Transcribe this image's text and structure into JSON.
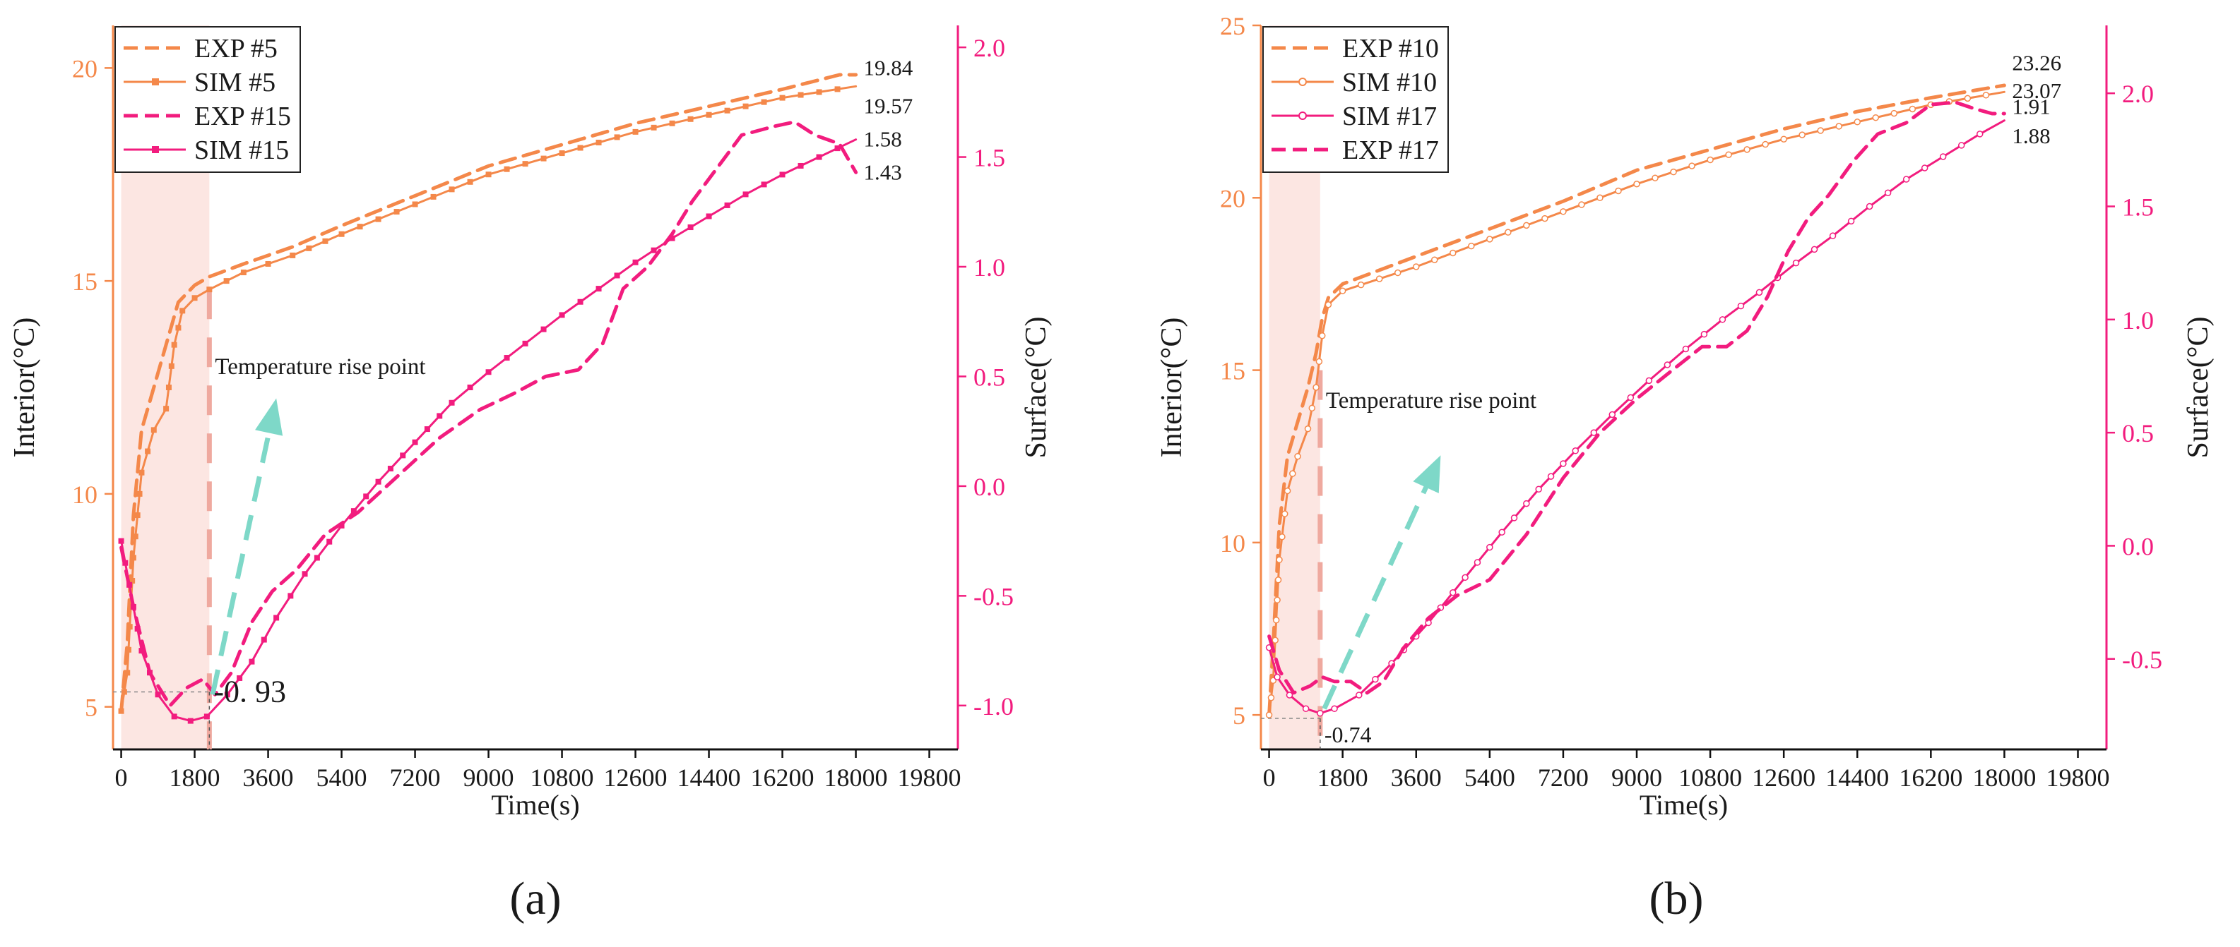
{
  "colors": {
    "orange": "#F4884A",
    "pink": "#F21C7E",
    "teal": "#7ED8C8",
    "shade": "#FCE6E2",
    "rise_line": "#EFA99F",
    "text": "#1a1a1a"
  },
  "chart_data": [
    {
      "type": "line",
      "panel_label": "(a)",
      "xlabel": "Time(s)",
      "ylabel_left": "Interior(°C)",
      "ylabel_right": "Surface(°C)",
      "xlim": [
        -200,
        20500
      ],
      "ylim_left": [
        4.0,
        21.0
      ],
      "ylim_right": [
        -1.2,
        2.1
      ],
      "x_ticks": [
        0,
        1800,
        3600,
        5400,
        7200,
        9000,
        10800,
        12600,
        14400,
        16200,
        18000,
        19800
      ],
      "y_ticks_left": [
        5,
        10,
        15,
        20
      ],
      "y_ticks_right": [
        -1.0,
        -0.5,
        0.0,
        0.5,
        1.0,
        1.5,
        2.0
      ],
      "shade_x": [
        0,
        2160
      ],
      "rise_point": {
        "x": 2160,
        "y_left": 14.8,
        "label": "Temperature rise point"
      },
      "min_marker": {
        "x": 2160,
        "y_left": 5.35,
        "label": "-0. 93"
      },
      "arrow": {
        "from": [
          2240,
          -0.95
        ],
        "to": [
          3800,
          0.4
        ]
      },
      "end_labels": [
        {
          "text": "19.84",
          "x": 18050,
          "axis": "left",
          "y": 20.0
        },
        {
          "text": "19.57",
          "x": 18050,
          "axis": "left",
          "y": 19.1
        },
        {
          "text": "1.58",
          "x": 18050,
          "axis": "right",
          "y": 1.58
        },
        {
          "text": "1.43",
          "x": 18050,
          "axis": "right",
          "y": 1.43
        }
      ],
      "series": [
        {
          "name": "EXP #5",
          "axis": "left",
          "color": "orange",
          "dash": true,
          "marker": "none",
          "x": [
            0,
            150,
            300,
            500,
            800,
            1100,
            1400,
            1800,
            2160,
            3000,
            4200,
            5400,
            7200,
            9000,
            10800,
            12600,
            14400,
            16200,
            17600,
            18000
          ],
          "y": [
            4.9,
            6.5,
            9.5,
            11.5,
            12.5,
            13.5,
            14.5,
            14.9,
            15.1,
            15.4,
            15.8,
            16.3,
            17.0,
            17.7,
            18.2,
            18.7,
            19.1,
            19.5,
            19.84,
            19.84
          ]
        },
        {
          "name": "SIM #5",
          "axis": "left",
          "color": "orange",
          "dash": false,
          "marker": "square",
          "x": [
            0,
            150,
            300,
            500,
            800,
            1100,
            1300,
            1500,
            1800,
            2160,
            3000,
            4200,
            5400,
            7200,
            9000,
            10800,
            12600,
            14400,
            16200,
            18000
          ],
          "y": [
            4.9,
            5.8,
            8.5,
            10.5,
            11.5,
            12.0,
            13.5,
            14.3,
            14.6,
            14.8,
            15.2,
            15.6,
            16.1,
            16.8,
            17.5,
            18.0,
            18.5,
            18.9,
            19.3,
            19.57
          ]
        },
        {
          "name": "EXP #15",
          "axis": "right",
          "color": "pink",
          "dash": true,
          "marker": "none",
          "x": [
            0,
            300,
            700,
            1200,
            1600,
            2000,
            2300,
            2700,
            3200,
            3700,
            4300,
            5000,
            5800,
            6800,
            7800,
            8800,
            9600,
            10400,
            11200,
            11800,
            12300,
            12900,
            13500,
            14000,
            14600,
            15200,
            16000,
            16500,
            17000,
            17600,
            18000
          ],
          "y": [
            -0.28,
            -0.55,
            -0.85,
            -1.0,
            -0.92,
            -0.88,
            -0.95,
            -0.85,
            -0.62,
            -0.48,
            -0.38,
            -0.22,
            -0.12,
            0.05,
            0.22,
            0.35,
            0.42,
            0.5,
            0.53,
            0.65,
            0.9,
            1.0,
            1.15,
            1.3,
            1.45,
            1.6,
            1.64,
            1.66,
            1.6,
            1.56,
            1.43
          ]
        },
        {
          "name": "SIM #15",
          "axis": "right",
          "color": "pink",
          "dash": false,
          "marker": "square",
          "x": [
            0,
            200,
            500,
            900,
            1300,
            1700,
            2100,
            2600,
            3200,
            3800,
            4500,
            5400,
            6300,
            7200,
            8100,
            9000,
            9900,
            10800,
            11700,
            12600,
            13500,
            14400,
            15300,
            16200,
            17100,
            18000
          ],
          "y": [
            -0.25,
            -0.45,
            -0.75,
            -0.95,
            -1.05,
            -1.07,
            -1.05,
            -0.95,
            -0.8,
            -0.6,
            -0.4,
            -0.18,
            0.02,
            0.2,
            0.38,
            0.52,
            0.65,
            0.78,
            0.9,
            1.02,
            1.13,
            1.23,
            1.33,
            1.42,
            1.5,
            1.58
          ]
        }
      ]
    },
    {
      "type": "line",
      "panel_label": "(b)",
      "xlabel": "Time(s)",
      "ylabel_left": "Interior(°C)",
      "ylabel_right": "Surface(°C)",
      "xlim": [
        -200,
        20500
      ],
      "ylim_left": [
        4.0,
        25.0
      ],
      "ylim_right": [
        -0.9,
        2.3
      ],
      "x_ticks": [
        0,
        1800,
        3600,
        5400,
        7200,
        9000,
        10800,
        12600,
        14400,
        16200,
        18000,
        19800
      ],
      "y_ticks_left": [
        5,
        10,
        15,
        20,
        25
      ],
      "y_ticks_right": [
        -0.5,
        0.0,
        0.5,
        1.0,
        1.5,
        2.0
      ],
      "shade_x": [
        0,
        1250
      ],
      "rise_point": {
        "x": 1250,
        "y_left": 15.0,
        "label": "Temperature rise point"
      },
      "min_marker": {
        "x": 1250,
        "y_left": 4.9,
        "label": "-0.74"
      },
      "arrow": {
        "from": [
          1350,
          -0.72
        ],
        "to": [
          4200,
          0.4
        ]
      },
      "end_labels": [
        {
          "text": "23.26",
          "x": 18050,
          "axis": "left",
          "y": 23.9
        },
        {
          "text": "23.07",
          "x": 18050,
          "axis": "left",
          "y": 23.1
        },
        {
          "text": "1.91",
          "x": 18050,
          "axis": "right",
          "y": 1.94
        },
        {
          "text": "1.88",
          "x": 18050,
          "axis": "right",
          "y": 1.81
        }
      ],
      "series": [
        {
          "name": "EXP #10",
          "axis": "left",
          "color": "orange",
          "dash": true,
          "marker": "none",
          "x": [
            0,
            100,
            250,
            450,
            700,
            950,
            1150,
            1300,
            1450,
            1800,
            3600,
            5400,
            7200,
            9000,
            10800,
            12600,
            14400,
            16200,
            18000
          ],
          "y": [
            5.0,
            7.0,
            10.5,
            12.5,
            13.5,
            14.5,
            15.5,
            16.5,
            17.1,
            17.5,
            18.3,
            19.1,
            19.9,
            20.8,
            21.4,
            22.0,
            22.5,
            22.9,
            23.26
          ]
        },
        {
          "name": "SIM #10",
          "axis": "left",
          "color": "orange",
          "dash": false,
          "marker": "circle",
          "x": [
            0,
            100,
            250,
            450,
            700,
            950,
            1150,
            1300,
            1450,
            1800,
            3600,
            5400,
            7200,
            9000,
            10800,
            12600,
            14400,
            16200,
            18000
          ],
          "y": [
            5.0,
            6.0,
            9.5,
            11.5,
            12.5,
            13.3,
            14.5,
            16.0,
            16.9,
            17.3,
            18.0,
            18.8,
            19.6,
            20.4,
            21.1,
            21.7,
            22.2,
            22.7,
            23.07
          ]
        },
        {
          "name": "SIM #17",
          "axis": "right",
          "color": "pink",
          "dash": false,
          "marker": "circle",
          "x": [
            0,
            200,
            500,
            900,
            1250,
            1600,
            2200,
            3000,
            3900,
            4800,
            5700,
            6600,
            7500,
            8400,
            9300,
            10200,
            11100,
            12000,
            12900,
            13800,
            14700,
            15600,
            16500,
            17400,
            18000
          ],
          "y": [
            -0.45,
            -0.58,
            -0.66,
            -0.72,
            -0.74,
            -0.72,
            -0.66,
            -0.52,
            -0.34,
            -0.14,
            0.06,
            0.25,
            0.42,
            0.58,
            0.73,
            0.87,
            1.0,
            1.12,
            1.25,
            1.37,
            1.5,
            1.62,
            1.72,
            1.82,
            1.88
          ]
        },
        {
          "name": "EXP #17",
          "axis": "right",
          "color": "pink",
          "dash": true,
          "marker": "none",
          "x": [
            0,
            250,
            600,
            1000,
            1300,
            1600,
            2000,
            2400,
            2800,
            3300,
            3900,
            4600,
            5400,
            6300,
            7200,
            8100,
            9000,
            9900,
            10600,
            11200,
            11700,
            12200,
            12700,
            13200,
            13700,
            14300,
            14900,
            15600,
            16200,
            16800,
            17300,
            17700,
            18000
          ],
          "y": [
            -0.4,
            -0.55,
            -0.65,
            -0.62,
            -0.58,
            -0.6,
            -0.6,
            -0.65,
            -0.6,
            -0.45,
            -0.32,
            -0.22,
            -0.15,
            0.05,
            0.3,
            0.5,
            0.65,
            0.78,
            0.88,
            0.88,
            0.95,
            1.1,
            1.3,
            1.45,
            1.55,
            1.7,
            1.82,
            1.87,
            1.95,
            1.96,
            1.93,
            1.91,
            1.91
          ]
        }
      ]
    }
  ]
}
